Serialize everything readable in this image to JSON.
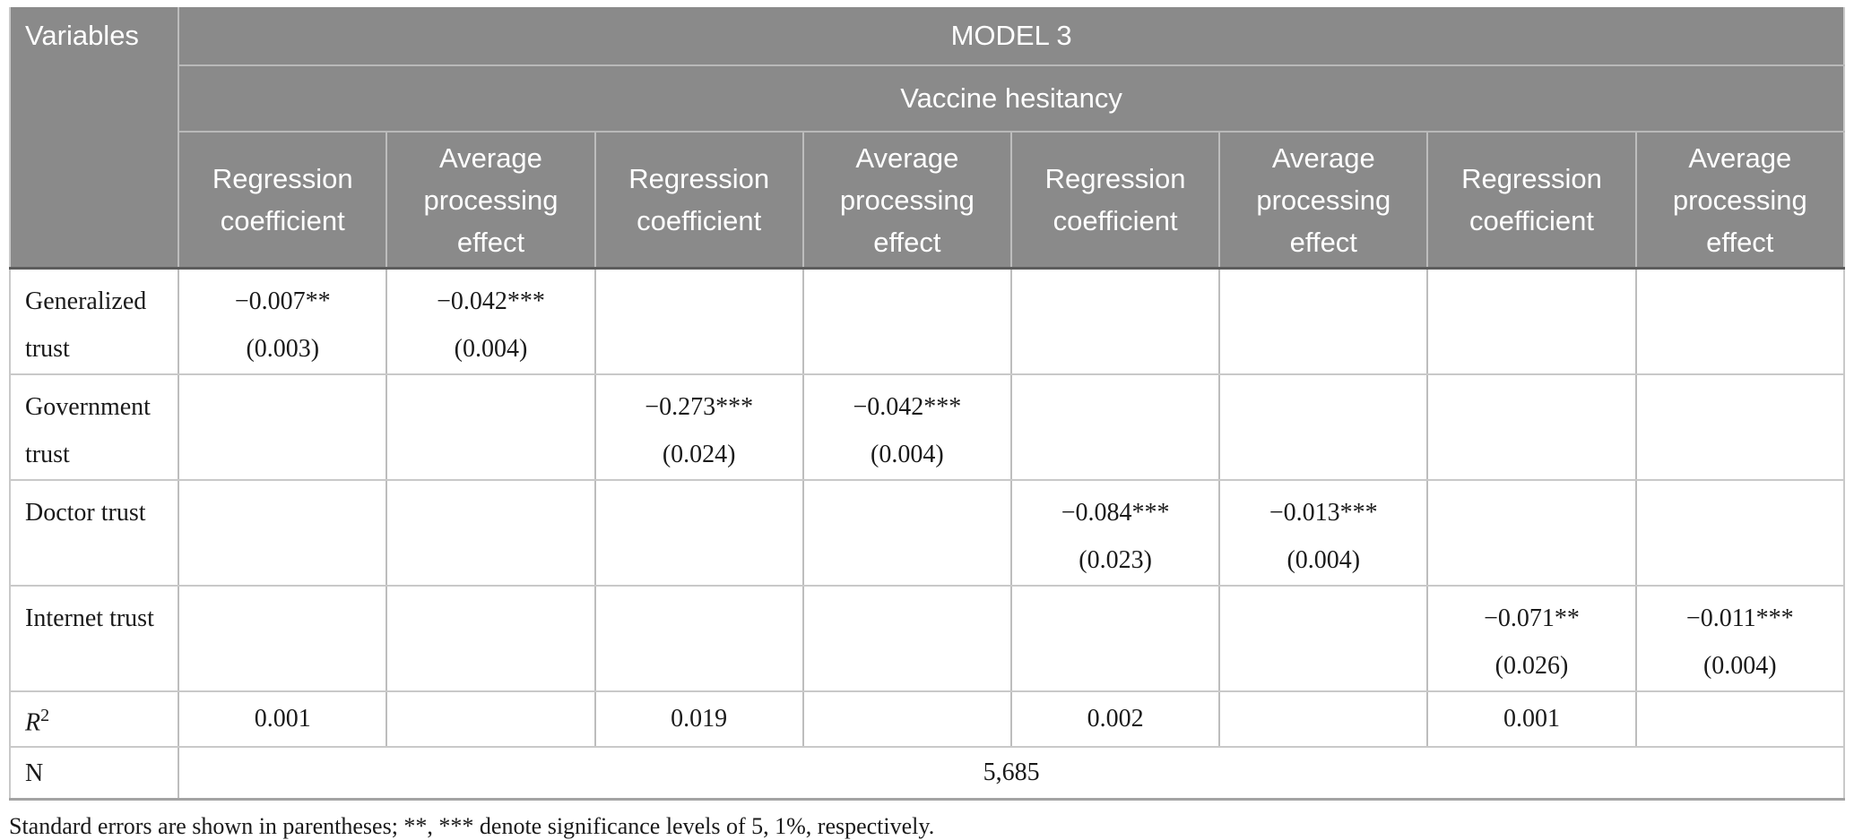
{
  "colors": {
    "header_bg": "#8a8a8a",
    "header_text": "#ffffff",
    "body_text": "#1a1a1a",
    "grid_light": "#c9c9c9",
    "grid_header_sep": "#bdbdbd",
    "header_bottom_rule": "#5d5d5d"
  },
  "table": {
    "corner_label": "Variables",
    "model_header": "MODEL 3",
    "outcome_header": "Vaccine hesitancy",
    "column_headers": [
      "Regression coefficient",
      "Average processing effect",
      "Regression coefficient",
      "Average processing effect",
      "Regression coefficient",
      "Average processing effect",
      "Regression coefficient",
      "Average processing effect"
    ],
    "rows": [
      {
        "label": "Generalized trust",
        "cells": [
          {
            "coef": "−0.007**",
            "se": "(0.003)"
          },
          {
            "coef": "−0.042***",
            "se": "(0.004)"
          },
          null,
          null,
          null,
          null,
          null,
          null
        ]
      },
      {
        "label": "Government trust",
        "cells": [
          null,
          null,
          {
            "coef": "−0.273***",
            "se": "(0.024)"
          },
          {
            "coef": "−0.042***",
            "se": "(0.004)"
          },
          null,
          null,
          null,
          null
        ]
      },
      {
        "label": "Doctor trust",
        "cells": [
          null,
          null,
          null,
          null,
          {
            "coef": "−0.084***",
            "se": "(0.023)"
          },
          {
            "coef": "−0.013***",
            "se": "(0.004)"
          },
          null,
          null
        ]
      },
      {
        "label": "Internet trust",
        "cells": [
          null,
          null,
          null,
          null,
          null,
          null,
          {
            "coef": "−0.071**",
            "se": "(0.026)"
          },
          {
            "coef": "−0.011***",
            "se": "(0.004)"
          }
        ]
      }
    ],
    "r2": {
      "label_base": "R",
      "label_sup": "2",
      "values": [
        "0.001",
        "",
        "0.019",
        "",
        "0.002",
        "",
        "0.001",
        ""
      ]
    },
    "n": {
      "label": "N",
      "value": "5,685"
    },
    "footnote": "Standard errors are shown in parentheses; **, *** denote significance levels of 5, 1%, respectively."
  }
}
